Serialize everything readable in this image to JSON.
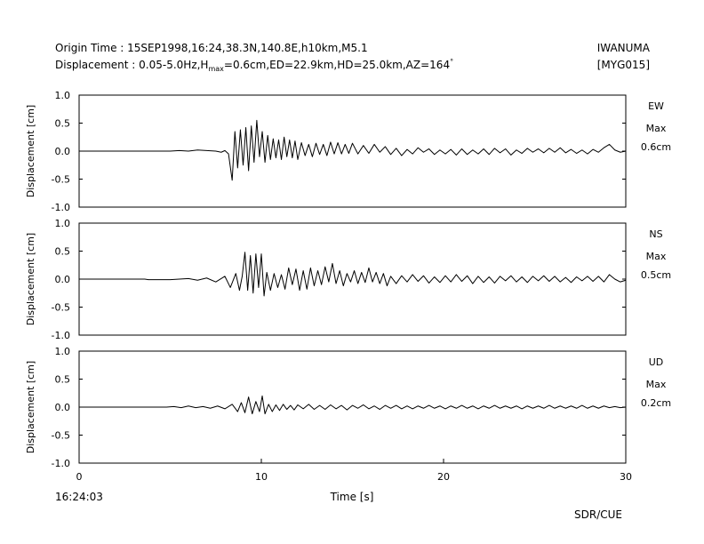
{
  "header": {
    "line1": "Origin Time : 15SEP1998,16:24,38.3N,140.8E,h10km,M5.1",
    "line2_prefix": "Displacement : 0.05-5.0Hz,H",
    "line2_sub": "max",
    "line2_suffix": "=0.6cm,ED=22.9km,HD=25.0km,AZ=164",
    "line2_sup": "°",
    "station": "IWANUMA",
    "station_code": "[MYG015]"
  },
  "footer": {
    "start_time": "16:24:03",
    "credit": "SDR/CUE"
  },
  "chart_data": {
    "type": "line",
    "x_range": [
      0,
      30
    ],
    "x_ticks": [
      0,
      10,
      20,
      30
    ],
    "xlabel": "Time [s]",
    "y_range": [
      -1.0,
      1.0
    ],
    "y_ticks": [
      "1.0",
      "0.5",
      "0.0",
      "-0.5",
      "-1.0"
    ],
    "ylabel": "Displacement [cm]",
    "max_label": "Max",
    "panels": [
      {
        "component": "EW",
        "max_value": "0.6cm",
        "points": [
          [
            0,
            0
          ],
          [
            5,
            0
          ],
          [
            5.5,
            0.01
          ],
          [
            6,
            0
          ],
          [
            6.5,
            0.02
          ],
          [
            7,
            0.01
          ],
          [
            7.5,
            0
          ],
          [
            7.8,
            -0.02
          ],
          [
            8.0,
            0.01
          ],
          [
            8.2,
            -0.05
          ],
          [
            8.4,
            -0.52
          ],
          [
            8.55,
            0.35
          ],
          [
            8.7,
            -0.3
          ],
          [
            8.85,
            0.38
          ],
          [
            9.0,
            -0.25
          ],
          [
            9.15,
            0.42
          ],
          [
            9.3,
            -0.35
          ],
          [
            9.45,
            0.45
          ],
          [
            9.6,
            -0.2
          ],
          [
            9.75,
            0.55
          ],
          [
            9.9,
            -0.1
          ],
          [
            10.05,
            0.35
          ],
          [
            10.2,
            -0.2
          ],
          [
            10.35,
            0.28
          ],
          [
            10.5,
            -0.15
          ],
          [
            10.65,
            0.22
          ],
          [
            10.8,
            -0.12
          ],
          [
            10.95,
            0.2
          ],
          [
            11.1,
            -0.15
          ],
          [
            11.25,
            0.25
          ],
          [
            11.4,
            -0.1
          ],
          [
            11.55,
            0.2
          ],
          [
            11.7,
            -0.12
          ],
          [
            11.85,
            0.18
          ],
          [
            12.0,
            -0.15
          ],
          [
            12.2,
            0.15
          ],
          [
            12.4,
            -0.08
          ],
          [
            12.6,
            0.12
          ],
          [
            12.8,
            -0.1
          ],
          [
            13.0,
            0.14
          ],
          [
            13.2,
            -0.06
          ],
          [
            13.4,
            0.12
          ],
          [
            13.6,
            -0.08
          ],
          [
            13.8,
            0.16
          ],
          [
            14.0,
            -0.05
          ],
          [
            14.2,
            0.15
          ],
          [
            14.4,
            -0.05
          ],
          [
            14.6,
            0.12
          ],
          [
            14.8,
            -0.04
          ],
          [
            15.0,
            0.14
          ],
          [
            15.3,
            -0.05
          ],
          [
            15.6,
            0.1
          ],
          [
            15.9,
            -0.04
          ],
          [
            16.2,
            0.12
          ],
          [
            16.5,
            -0.02
          ],
          [
            16.8,
            0.08
          ],
          [
            17.1,
            -0.06
          ],
          [
            17.4,
            0.05
          ],
          [
            17.7,
            -0.08
          ],
          [
            18.0,
            0.03
          ],
          [
            18.3,
            -0.05
          ],
          [
            18.6,
            0.06
          ],
          [
            18.9,
            -0.02
          ],
          [
            19.2,
            0.04
          ],
          [
            19.5,
            -0.06
          ],
          [
            19.8,
            0.02
          ],
          [
            20.1,
            -0.05
          ],
          [
            20.4,
            0.03
          ],
          [
            20.7,
            -0.07
          ],
          [
            21.0,
            0.04
          ],
          [
            21.3,
            -0.06
          ],
          [
            21.6,
            0.02
          ],
          [
            21.9,
            -0.05
          ],
          [
            22.2,
            0.04
          ],
          [
            22.5,
            -0.06
          ],
          [
            22.8,
            0.05
          ],
          [
            23.1,
            -0.03
          ],
          [
            23.4,
            0.04
          ],
          [
            23.7,
            -0.07
          ],
          [
            24.0,
            0.02
          ],
          [
            24.3,
            -0.04
          ],
          [
            24.6,
            0.05
          ],
          [
            24.9,
            -0.02
          ],
          [
            25.2,
            0.04
          ],
          [
            25.5,
            -0.03
          ],
          [
            25.8,
            0.05
          ],
          [
            26.1,
            -0.02
          ],
          [
            26.4,
            0.06
          ],
          [
            26.7,
            -0.03
          ],
          [
            27.0,
            0.03
          ],
          [
            27.3,
            -0.04
          ],
          [
            27.6,
            0.02
          ],
          [
            27.9,
            -0.05
          ],
          [
            28.2,
            0.03
          ],
          [
            28.5,
            -0.02
          ],
          [
            28.8,
            0.06
          ],
          [
            29.1,
            0.12
          ],
          [
            29.4,
            0.02
          ],
          [
            29.7,
            -0.02
          ],
          [
            30.0,
            0.0
          ]
        ]
      },
      {
        "component": "NS",
        "max_value": "0.5cm",
        "points": [
          [
            0,
            0
          ],
          [
            3.6,
            0
          ],
          [
            3.8,
            -0.01
          ],
          [
            5,
            -0.01
          ],
          [
            6,
            0.01
          ],
          [
            6.5,
            -0.02
          ],
          [
            7,
            0.02
          ],
          [
            7.5,
            -0.05
          ],
          [
            8.0,
            0.05
          ],
          [
            8.3,
            -0.15
          ],
          [
            8.6,
            0.1
          ],
          [
            8.8,
            -0.2
          ],
          [
            8.95,
            0.05
          ],
          [
            9.1,
            0.48
          ],
          [
            9.25,
            -0.2
          ],
          [
            9.4,
            0.42
          ],
          [
            9.55,
            -0.25
          ],
          [
            9.7,
            0.45
          ],
          [
            9.85,
            -0.15
          ],
          [
            10.0,
            0.45
          ],
          [
            10.15,
            -0.3
          ],
          [
            10.3,
            0.12
          ],
          [
            10.5,
            -0.2
          ],
          [
            10.7,
            0.1
          ],
          [
            10.9,
            -0.15
          ],
          [
            11.1,
            0.08
          ],
          [
            11.3,
            -0.18
          ],
          [
            11.5,
            0.2
          ],
          [
            11.7,
            -0.1
          ],
          [
            11.9,
            0.18
          ],
          [
            12.1,
            -0.2
          ],
          [
            12.3,
            0.15
          ],
          [
            12.5,
            -0.18
          ],
          [
            12.7,
            0.2
          ],
          [
            12.9,
            -0.12
          ],
          [
            13.1,
            0.15
          ],
          [
            13.3,
            -0.1
          ],
          [
            13.5,
            0.22
          ],
          [
            13.7,
            -0.05
          ],
          [
            13.9,
            0.28
          ],
          [
            14.1,
            -0.08
          ],
          [
            14.3,
            0.15
          ],
          [
            14.5,
            -0.12
          ],
          [
            14.7,
            0.1
          ],
          [
            14.9,
            -0.05
          ],
          [
            15.1,
            0.15
          ],
          [
            15.3,
            -0.08
          ],
          [
            15.5,
            0.12
          ],
          [
            15.7,
            -0.06
          ],
          [
            15.9,
            0.2
          ],
          [
            16.1,
            -0.05
          ],
          [
            16.3,
            0.12
          ],
          [
            16.5,
            -0.08
          ],
          [
            16.7,
            0.1
          ],
          [
            16.9,
            -0.12
          ],
          [
            17.1,
            0.05
          ],
          [
            17.4,
            -0.08
          ],
          [
            17.7,
            0.06
          ],
          [
            18.0,
            -0.05
          ],
          [
            18.3,
            0.08
          ],
          [
            18.6,
            -0.04
          ],
          [
            18.9,
            0.06
          ],
          [
            19.2,
            -0.07
          ],
          [
            19.5,
            0.04
          ],
          [
            19.8,
            -0.06
          ],
          [
            20.1,
            0.06
          ],
          [
            20.4,
            -0.05
          ],
          [
            20.7,
            0.08
          ],
          [
            21.0,
            -0.04
          ],
          [
            21.3,
            0.06
          ],
          [
            21.6,
            -0.08
          ],
          [
            21.9,
            0.05
          ],
          [
            22.2,
            -0.06
          ],
          [
            22.5,
            0.04
          ],
          [
            22.8,
            -0.07
          ],
          [
            23.1,
            0.05
          ],
          [
            23.4,
            -0.03
          ],
          [
            23.7,
            0.06
          ],
          [
            24.0,
            -0.05
          ],
          [
            24.3,
            0.04
          ],
          [
            24.6,
            -0.06
          ],
          [
            24.9,
            0.05
          ],
          [
            25.2,
            -0.03
          ],
          [
            25.5,
            0.06
          ],
          [
            25.8,
            -0.04
          ],
          [
            26.1,
            0.05
          ],
          [
            26.4,
            -0.05
          ],
          [
            26.7,
            0.03
          ],
          [
            27.0,
            -0.06
          ],
          [
            27.3,
            0.04
          ],
          [
            27.6,
            -0.03
          ],
          [
            27.9,
            0.05
          ],
          [
            28.2,
            -0.04
          ],
          [
            28.5,
            0.05
          ],
          [
            28.8,
            -0.05
          ],
          [
            29.1,
            0.08
          ],
          [
            29.4,
            0.0
          ],
          [
            29.7,
            -0.05
          ],
          [
            30.0,
            -0.02
          ]
        ]
      },
      {
        "component": "UD",
        "max_value": "0.2cm",
        "points": [
          [
            0,
            0
          ],
          [
            4.8,
            0
          ],
          [
            5.2,
            0.01
          ],
          [
            5.6,
            -0.01
          ],
          [
            6,
            0.02
          ],
          [
            6.4,
            -0.01
          ],
          [
            6.8,
            0.01
          ],
          [
            7.2,
            -0.02
          ],
          [
            7.6,
            0.02
          ],
          [
            8.0,
            -0.03
          ],
          [
            8.4,
            0.05
          ],
          [
            8.7,
            -0.08
          ],
          [
            8.9,
            0.08
          ],
          [
            9.1,
            -0.1
          ],
          [
            9.3,
            0.18
          ],
          [
            9.5,
            -0.12
          ],
          [
            9.7,
            0.1
          ],
          [
            9.9,
            -0.08
          ],
          [
            10.05,
            0.2
          ],
          [
            10.2,
            -0.12
          ],
          [
            10.4,
            0.05
          ],
          [
            10.6,
            -0.08
          ],
          [
            10.8,
            0.04
          ],
          [
            11.0,
            -0.06
          ],
          [
            11.2,
            0.05
          ],
          [
            11.4,
            -0.04
          ],
          [
            11.6,
            0.03
          ],
          [
            11.8,
            -0.05
          ],
          [
            12.0,
            0.04
          ],
          [
            12.3,
            -0.03
          ],
          [
            12.6,
            0.05
          ],
          [
            12.9,
            -0.04
          ],
          [
            13.2,
            0.03
          ],
          [
            13.5,
            -0.04
          ],
          [
            13.8,
            0.04
          ],
          [
            14.1,
            -0.03
          ],
          [
            14.4,
            0.03
          ],
          [
            14.7,
            -0.05
          ],
          [
            15.0,
            0.03
          ],
          [
            15.3,
            -0.02
          ],
          [
            15.6,
            0.04
          ],
          [
            15.9,
            -0.03
          ],
          [
            16.2,
            0.02
          ],
          [
            16.5,
            -0.04
          ],
          [
            16.8,
            0.03
          ],
          [
            17.1,
            -0.02
          ],
          [
            17.4,
            0.03
          ],
          [
            17.7,
            -0.03
          ],
          [
            18.0,
            0.02
          ],
          [
            18.3,
            -0.03
          ],
          [
            18.6,
            0.02
          ],
          [
            18.9,
            -0.02
          ],
          [
            19.2,
            0.03
          ],
          [
            19.5,
            -0.02
          ],
          [
            19.8,
            0.02
          ],
          [
            20.1,
            -0.03
          ],
          [
            20.4,
            0.02
          ],
          [
            20.7,
            -0.02
          ],
          [
            21.0,
            0.03
          ],
          [
            21.3,
            -0.02
          ],
          [
            21.6,
            0.02
          ],
          [
            21.9,
            -0.03
          ],
          [
            22.2,
            0.02
          ],
          [
            22.5,
            -0.02
          ],
          [
            22.8,
            0.03
          ],
          [
            23.1,
            -0.02
          ],
          [
            23.4,
            0.02
          ],
          [
            23.7,
            -0.02
          ],
          [
            24.0,
            0.02
          ],
          [
            24.3,
            -0.03
          ],
          [
            24.6,
            0.02
          ],
          [
            24.9,
            -0.02
          ],
          [
            25.2,
            0.02
          ],
          [
            25.5,
            -0.02
          ],
          [
            25.8,
            0.03
          ],
          [
            26.1,
            -0.02
          ],
          [
            26.4,
            0.02
          ],
          [
            26.7,
            -0.02
          ],
          [
            27.0,
            0.02
          ],
          [
            27.3,
            -0.02
          ],
          [
            27.6,
            0.03
          ],
          [
            27.9,
            -0.02
          ],
          [
            28.2,
            0.02
          ],
          [
            28.5,
            -0.02
          ],
          [
            28.8,
            0.02
          ],
          [
            29.1,
            -0.01
          ],
          [
            29.4,
            0.01
          ],
          [
            29.7,
            -0.01
          ],
          [
            30.0,
            0.0
          ]
        ]
      }
    ]
  }
}
